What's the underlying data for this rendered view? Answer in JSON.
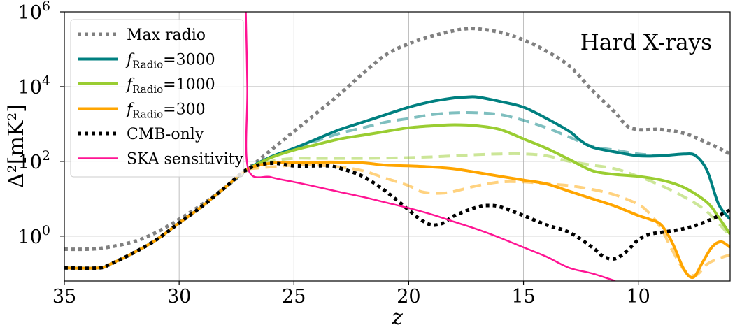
{
  "chart_data": {
    "type": "line",
    "annotation": "Hard X-rays",
    "xlabel": "z",
    "ylabel": "Δ²[mK²]",
    "xlim": [
      35,
      6
    ],
    "ylim_log10": [
      -1.2,
      6
    ],
    "y_scale": "log",
    "grid": true,
    "legend_position": "top-left",
    "x_ticks": [
      35,
      30,
      25,
      20,
      15,
      10
    ],
    "x_tick_labels": [
      "35",
      "30",
      "25",
      "20",
      "15",
      "10"
    ],
    "y_ticks_log10": [
      0,
      2,
      4,
      6
    ],
    "y_tick_labels": [
      {
        "base": "10",
        "exp": "0"
      },
      {
        "base": "10",
        "exp": "2"
      },
      {
        "base": "10",
        "exp": "4"
      },
      {
        "base": "10",
        "exp": "6"
      }
    ],
    "legend": [
      {
        "key": "maxradio",
        "label": "Max radio"
      },
      {
        "key": "f3000",
        "label_f": "f",
        "label_sub": "Radio",
        "label_rest": "=3000"
      },
      {
        "key": "f1000",
        "label_f": "f",
        "label_sub": "Radio",
        "label_rest": "=1000"
      },
      {
        "key": "f300",
        "label_f": "f",
        "label_sub": "Radio",
        "label_rest": "=300"
      },
      {
        "key": "cmb",
        "label": "CMB-only"
      },
      {
        "key": "ska",
        "label": "SKA sensitivity"
      }
    ],
    "series": [
      {
        "key": "maxradio",
        "name": "Max radio",
        "color": "#808080",
        "style": "dotted",
        "width": 5,
        "x": [
          35,
          33.5,
          32,
          31,
          30,
          29,
          28,
          27,
          26,
          25,
          24,
          23,
          22,
          21,
          20,
          19,
          18,
          17.5,
          17,
          16,
          15,
          14,
          13,
          12,
          11,
          10.5,
          10,
          9.5,
          9,
          8,
          7,
          6
        ],
        "log10_y": [
          -0.35,
          -0.33,
          -0.15,
          0.1,
          0.45,
          0.85,
          1.3,
          1.8,
          2.3,
          2.8,
          3.3,
          3.8,
          4.35,
          4.85,
          5.15,
          5.35,
          5.5,
          5.55,
          5.55,
          5.45,
          5.25,
          4.95,
          4.55,
          3.9,
          3.3,
          2.95,
          2.85,
          2.85,
          2.85,
          2.75,
          2.5,
          2.2
        ]
      },
      {
        "key": "f3000",
        "name": "fRadio=3000",
        "color": "#008080",
        "style": "solid",
        "width": 4,
        "x": [
          35,
          33.5,
          33,
          32,
          31,
          30,
          29,
          28,
          27,
          26,
          25,
          24,
          23,
          22,
          21,
          20,
          19,
          18,
          17.5,
          17,
          16,
          15,
          14,
          13,
          12.5,
          12,
          11,
          10,
          9,
          8,
          7.5,
          7,
          6.5,
          6
        ],
        "log10_y": [
          -0.85,
          -0.85,
          -0.75,
          -0.45,
          -0.1,
          0.35,
          0.8,
          1.3,
          1.8,
          2.12,
          2.35,
          2.6,
          2.85,
          3.05,
          3.25,
          3.45,
          3.6,
          3.7,
          3.72,
          3.72,
          3.6,
          3.45,
          3.15,
          2.8,
          2.55,
          2.38,
          2.25,
          2.15,
          2.15,
          2.2,
          2.15,
          1.75,
          0.85,
          0.45
        ]
      },
      {
        "key": "f3000_dash",
        "name": "fRadio=3000 (dashed)",
        "color": "#008080",
        "opacity": 0.5,
        "style": "dashed",
        "width": 4,
        "x": [
          27,
          26,
          25,
          24,
          23,
          22,
          21,
          20,
          19,
          18,
          17,
          16,
          15,
          14,
          13,
          12,
          11,
          10,
          9
        ],
        "log10_y": [
          1.8,
          2.1,
          2.35,
          2.55,
          2.75,
          2.9,
          3.05,
          3.15,
          3.25,
          3.3,
          3.3,
          3.25,
          3.1,
          2.9,
          2.65,
          2.4,
          2.3,
          2.2,
          2.15
        ]
      },
      {
        "key": "f1000",
        "name": "fRadio=1000",
        "color": "#9ACD32",
        "style": "solid",
        "width": 4,
        "x": [
          27,
          26,
          25,
          24,
          23,
          22,
          21,
          20,
          19,
          18,
          17,
          16,
          15,
          14,
          13,
          12,
          11,
          10,
          9,
          8,
          7,
          6.5,
          6
        ],
        "log10_y": [
          1.8,
          2.1,
          2.3,
          2.45,
          2.6,
          2.7,
          2.8,
          2.9,
          2.95,
          2.98,
          2.95,
          2.85,
          2.6,
          2.35,
          2.05,
          1.75,
          1.65,
          1.6,
          1.5,
          1.3,
          0.9,
          0.5,
          0.05
        ]
      },
      {
        "key": "f1000_dash",
        "name": "fRadio=1000 (dashed)",
        "color": "#9ACD32",
        "opacity": 0.5,
        "style": "dashed",
        "width": 4,
        "x": [
          27,
          26,
          25,
          24,
          23,
          22,
          21,
          20,
          19,
          18,
          17,
          16,
          15,
          14,
          13,
          12,
          11,
          10,
          9,
          8,
          7,
          6
        ],
        "log10_y": [
          1.8,
          2.0,
          2.08,
          2.08,
          2.08,
          2.08,
          2.09,
          2.1,
          2.12,
          2.15,
          2.18,
          2.2,
          2.2,
          2.15,
          2.0,
          1.9,
          1.8,
          1.6,
          1.35,
          1.05,
          0.65,
          0.0
        ]
      },
      {
        "key": "f300",
        "name": "fRadio=300",
        "color": "#FFA500",
        "style": "solid",
        "width": 4,
        "x": [
          35,
          33.5,
          33,
          32,
          31,
          30,
          29,
          28,
          27,
          26,
          25,
          24,
          23,
          22,
          21,
          20,
          19,
          18,
          17,
          16,
          15,
          14,
          13,
          12,
          11,
          10,
          9.5,
          9,
          8.5,
          8,
          7.6,
          7.2,
          6.8,
          6.4,
          6
        ],
        "log10_y": [
          -0.85,
          -0.85,
          -0.75,
          -0.45,
          -0.1,
          0.35,
          0.8,
          1.3,
          1.8,
          1.95,
          1.97,
          1.98,
          1.98,
          1.96,
          1.9,
          1.88,
          1.85,
          1.8,
          1.7,
          1.6,
          1.5,
          1.4,
          1.2,
          1.0,
          0.8,
          0.55,
          0.45,
          0.3,
          -0.2,
          -0.9,
          -1.1,
          -0.7,
          -0.3,
          -0.15,
          -0.3
        ]
      },
      {
        "key": "f300_dash",
        "name": "fRadio=300 (dashed)",
        "color": "#FFA500",
        "opacity": 0.5,
        "style": "dashed",
        "width": 4,
        "x": [
          27,
          26,
          25,
          24,
          23,
          22,
          21,
          20,
          19.5,
          19,
          18.5,
          18,
          17,
          16,
          15,
          14,
          13,
          12,
          11,
          10,
          9.5,
          9,
          8.5,
          8,
          7.5,
          7,
          6.5,
          6
        ],
        "log10_y": [
          1.8,
          1.85,
          1.9,
          1.9,
          1.85,
          1.75,
          1.55,
          1.35,
          1.2,
          1.15,
          1.15,
          1.2,
          1.35,
          1.45,
          1.45,
          1.4,
          1.35,
          1.25,
          1.1,
          0.85,
          0.6,
          0.2,
          -0.4,
          -0.9,
          -1.05,
          -0.75,
          -0.6,
          -0.5
        ]
      },
      {
        "key": "cmb",
        "name": "CMB-only",
        "color": "#000000",
        "style": "dotted",
        "width": 5,
        "x": [
          35,
          33.5,
          33,
          32,
          31,
          30,
          29,
          28,
          27,
          26,
          25,
          24,
          23.5,
          23,
          22,
          21,
          20,
          19.5,
          19,
          18.5,
          18,
          17,
          16.5,
          16,
          15,
          14,
          13,
          12,
          11.5,
          11,
          10.5,
          10,
          9.5,
          9,
          8,
          7,
          6
        ],
        "log10_y": [
          -0.85,
          -0.85,
          -0.75,
          -0.45,
          -0.1,
          0.35,
          0.8,
          1.3,
          1.8,
          1.95,
          1.88,
          1.88,
          1.88,
          1.82,
          1.6,
          1.2,
          0.7,
          0.45,
          0.3,
          0.35,
          0.55,
          0.78,
          0.82,
          0.78,
          0.55,
          0.3,
          0.1,
          -0.3,
          -0.55,
          -0.6,
          -0.4,
          -0.1,
          0.05,
          0.1,
          0.2,
          0.4,
          0.7
        ]
      },
      {
        "key": "ska",
        "name": "SKA sensitivity",
        "color": "#FF1493",
        "style": "solid",
        "width": 2.5,
        "x": [
          27.1,
          27.03,
          27,
          26,
          25,
          24,
          23,
          22,
          21,
          20,
          19,
          18,
          17,
          16,
          15,
          14,
          13,
          12,
          11
        ],
        "log10_y": [
          6.2,
          4.0,
          1.82,
          1.58,
          1.45,
          1.32,
          1.18,
          1.05,
          0.9,
          0.75,
          0.58,
          0.38,
          0.18,
          -0.05,
          -0.3,
          -0.55,
          -0.85,
          -1.0,
          -1.2
        ]
      }
    ]
  }
}
